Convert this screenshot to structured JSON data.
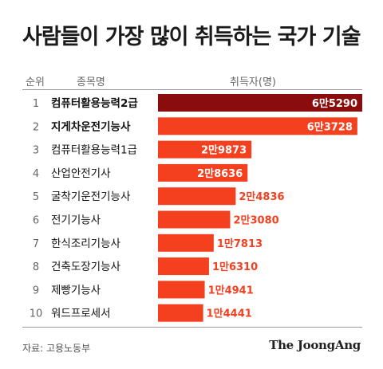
{
  "title": "사람들이 가장 많이 취득하는 국가 기술",
  "header": {
    "rank": "순위",
    "name": "종목명",
    "count": "취득자(명)"
  },
  "source": "자료: 고용노동부",
  "brand": "The JoongAng",
  "colors": {
    "top": "#8b0c0c",
    "bar": "#f5401f",
    "text_on_bar": "#ffffff",
    "text_off_bar": "#f5401f"
  },
  "chart_data": {
    "type": "bar",
    "orientation": "horizontal",
    "categories": [
      "컴퓨터활용능력2급",
      "지게차운전기능사",
      "컴퓨터활용능력1급",
      "산업안전기사",
      "굴착기운전기능사",
      "전기기능사",
      "한식조리기능사",
      "건축도장기능사",
      "제빵기능사",
      "워드프로세서"
    ],
    "ranks": [
      "1",
      "2",
      "3",
      "4",
      "5",
      "6",
      "7",
      "8",
      "9",
      "10"
    ],
    "values": [
      65290,
      63728,
      29873,
      28636,
      24836,
      23080,
      17813,
      16310,
      14941,
      14441
    ],
    "value_labels": [
      "6만5290",
      "6만3728",
      "2만9873",
      "2만8636",
      "2만4836",
      "2만3080",
      "1만7813",
      "1만6310",
      "1만4941",
      "1만4441"
    ],
    "xlim": [
      0,
      65290
    ],
    "ylabel": "취득자(명)"
  }
}
